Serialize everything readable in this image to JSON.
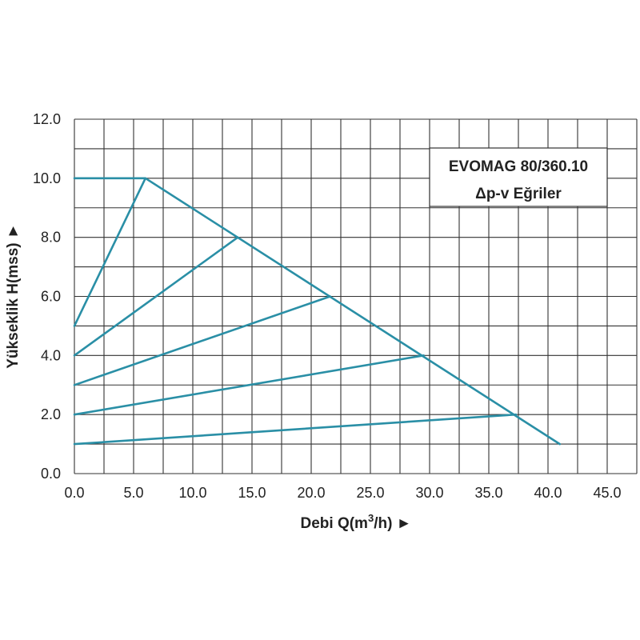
{
  "chart_data": {
    "type": "line",
    "title": "EVOMAG 80/360.10",
    "subtitle": "Δp-v Eğriler",
    "xlabel": "Debi Q(m3/h) ►",
    "xlabel_parts": {
      "prefix": "Debi Q(m",
      "superscript": "3",
      "suffix": "/h) ►"
    },
    "ylabel": "Yükseklik H(mss) ►",
    "xlim": [
      0,
      47.5
    ],
    "ylim": [
      0,
      12
    ],
    "x_ticks": [
      "0.0",
      "5.0",
      "10.0",
      "15.0",
      "20.0",
      "25.0",
      "30.0",
      "35.0",
      "40.0",
      "45.0"
    ],
    "x_tick_values": [
      0,
      5,
      10,
      15,
      20,
      25,
      30,
      35,
      40,
      45
    ],
    "y_ticks": [
      "0.0",
      "2.0",
      "4.0",
      "6.0",
      "8.0",
      "10.0",
      "12.0"
    ],
    "y_tick_values": [
      0,
      2,
      4,
      6,
      8,
      10,
      12
    ],
    "grid": true,
    "x_grid_step": 2.5,
    "y_grid_step": 1,
    "line_color": "#2a8fa6",
    "grid_color": "#333333",
    "series": [
      {
        "points": [
          [
            0,
            10
          ],
          [
            6,
            10
          ],
          [
            41,
            1
          ]
        ]
      },
      {
        "points": [
          [
            0,
            5
          ],
          [
            6,
            10
          ]
        ]
      },
      {
        "points": [
          [
            0,
            4
          ],
          [
            13.8,
            8
          ]
        ]
      },
      {
        "points": [
          [
            0,
            3
          ],
          [
            21.6,
            6
          ]
        ]
      },
      {
        "points": [
          [
            0,
            2
          ],
          [
            29.5,
            4
          ]
        ]
      },
      {
        "points": [
          [
            0,
            1
          ],
          [
            37.3,
            2
          ]
        ]
      }
    ]
  }
}
